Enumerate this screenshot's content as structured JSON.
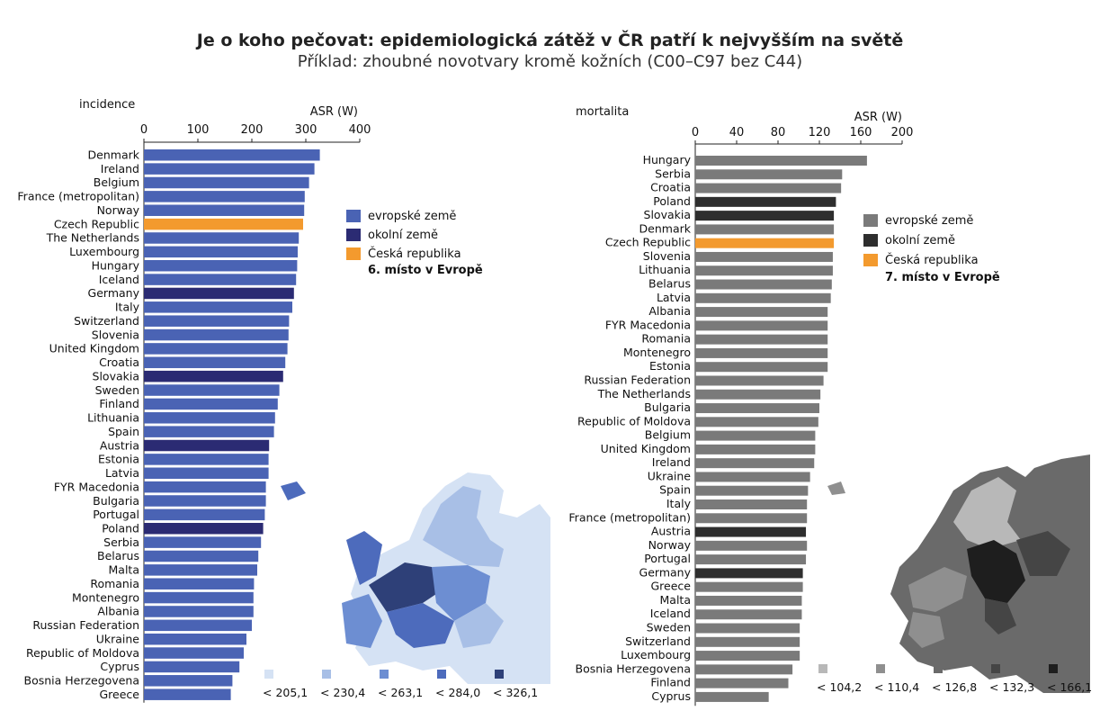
{
  "header": {
    "title": "Je o koho pečovat: epidemiologická zátěž v ČR patří k nejvyšším na světě",
    "subtitle": "Příklad: zhoubné novotvary kromě kožních (C00–C97 bez C44)"
  },
  "chart_data": [
    {
      "type": "bar",
      "orientation": "horizontal",
      "panel_label": "incidence",
      "xlabel": "ASR (W)",
      "xlim": [
        0,
        400
      ],
      "xticks": [
        0,
        100,
        200,
        300,
        400
      ],
      "colors": {
        "evropske": "#4a63b4",
        "okolni": "#2b2b73",
        "cr": "#f39a2e"
      },
      "legend": {
        "items": [
          {
            "label": "evropské země",
            "color": "#4a63b4"
          },
          {
            "label": "okolní země",
            "color": "#2b2b73"
          },
          {
            "label": "Česká republika",
            "color": "#f39a2e"
          }
        ],
        "note": "6. místo v Evropě"
      },
      "map_scale": {
        "labels": [
          "< 205,1",
          "< 230,4",
          "< 263,1",
          "< 284,0",
          "< 326,1"
        ],
        "colors": [
          "#d5e2f4",
          "#a8bfe6",
          "#6d8ed2",
          "#4d6bbc",
          "#2e4078"
        ]
      },
      "categories": [
        "Denmark",
        "Ireland",
        "Belgium",
        "France (metropolitan)",
        "Norway",
        "Czech Republic",
        "The Netherlands",
        "Luxembourg",
        "Hungary",
        "Iceland",
        "Germany",
        "Italy",
        "Switzerland",
        "Slovenia",
        "United Kingdom",
        "Croatia",
        "Slovakia",
        "Sweden",
        "Finland",
        "Lithuania",
        "Spain",
        "Austria",
        "Estonia",
        "Latvia",
        "FYR Macedonia",
        "Bulgaria",
        "Portugal",
        "Poland",
        "Serbia",
        "Belarus",
        "Malta",
        "Romania",
        "Montenegro",
        "Albania",
        "Russian Federation",
        "Ukraine",
        "Republic of Moldova",
        "Cyprus",
        "Bosnia Herzegovena",
        "Greece"
      ],
      "values": [
        326,
        316,
        306,
        298,
        297,
        295,
        287,
        285,
        284,
        282,
        278,
        275,
        269,
        268,
        266,
        262,
        258,
        251,
        248,
        243,
        241,
        232,
        231,
        231,
        226,
        226,
        224,
        221,
        217,
        212,
        210,
        204,
        203,
        203,
        200,
        190,
        185,
        177,
        164,
        161
      ],
      "groups": [
        "e",
        "e",
        "e",
        "e",
        "e",
        "cr",
        "e",
        "e",
        "e",
        "e",
        "o",
        "e",
        "e",
        "e",
        "e",
        "e",
        "o",
        "e",
        "e",
        "e",
        "e",
        "o",
        "e",
        "e",
        "e",
        "e",
        "e",
        "o",
        "e",
        "e",
        "e",
        "e",
        "e",
        "e",
        "e",
        "e",
        "e",
        "e",
        "e",
        "e"
      ]
    },
    {
      "type": "bar",
      "orientation": "horizontal",
      "panel_label": "mortalita",
      "xlabel": "ASR (W)",
      "xlim": [
        0,
        200
      ],
      "xticks": [
        0,
        40,
        80,
        120,
        160,
        200
      ],
      "colors": {
        "evropske": "#7a7a7a",
        "okolni": "#2e2e2e",
        "cr": "#f39a2e"
      },
      "legend": {
        "items": [
          {
            "label": "evropské země",
            "color": "#7a7a7a"
          },
          {
            "label": "okolní země",
            "color": "#2e2e2e"
          },
          {
            "label": "Česká republika",
            "color": "#f39a2e"
          }
        ],
        "note": "7. místo v Evropě"
      },
      "map_scale": {
        "labels": [
          "< 104,2",
          "< 110,4",
          "< 126,8",
          "< 132,3",
          "< 166,1"
        ],
        "colors": [
          "#b8b8b8",
          "#8f8f8f",
          "#6a6a6a",
          "#454545",
          "#1e1e1e"
        ]
      },
      "categories": [
        "Hungary",
        "Serbia",
        "Croatia",
        "Poland",
        "Slovakia",
        "Denmark",
        "Czech Republic",
        "Slovenia",
        "Lithuania",
        "Belarus",
        "Latvia",
        "Albania",
        "FYR Macedonia",
        "Romania",
        "Montenegro",
        "Estonia",
        "Russian Federation",
        "The Netherlands",
        "Bulgaria",
        "Republic of Moldova",
        "Belgium",
        "United Kingdom",
        "Ireland",
        "Ukraine",
        "Spain",
        "Italy",
        "France (metropolitan)",
        "Austria",
        "Norway",
        "Portugal",
        "Germany",
        "Greece",
        "Malta",
        "Iceland",
        "Sweden",
        "Switzerland",
        "Luxembourg",
        "Bosnia Herzegovena",
        "Finland",
        "Cyprus"
      ],
      "values": [
        166,
        142,
        141,
        136,
        134,
        134,
        134,
        133,
        133,
        132,
        131,
        128,
        128,
        128,
        128,
        128,
        124,
        121,
        120,
        119,
        116,
        116,
        115,
        111,
        109,
        108,
        108,
        107,
        108,
        107,
        104,
        104,
        103,
        103,
        101,
        101,
        101,
        94,
        90,
        71
      ],
      "groups": [
        "e",
        "e",
        "e",
        "o",
        "o",
        "e",
        "cr",
        "e",
        "e",
        "e",
        "e",
        "e",
        "e",
        "e",
        "e",
        "e",
        "e",
        "e",
        "e",
        "e",
        "e",
        "e",
        "e",
        "e",
        "e",
        "e",
        "e",
        "o",
        "e",
        "e",
        "o",
        "e",
        "e",
        "e",
        "e",
        "e",
        "e",
        "e",
        "e",
        "e"
      ]
    }
  ]
}
